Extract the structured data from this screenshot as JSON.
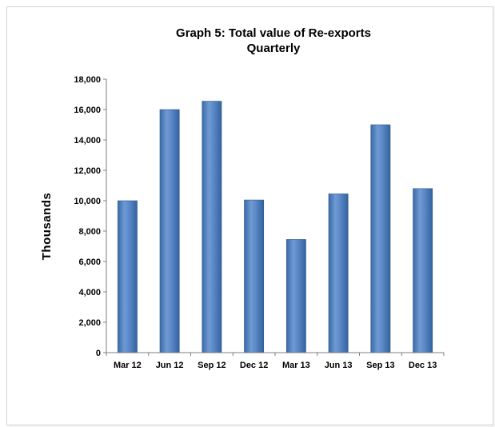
{
  "chart_data": {
    "type": "bar",
    "title": "Graph 5: Total value of Re-exports",
    "subtitle": "Quarterly",
    "xlabel": "",
    "ylabel": "Thousands",
    "categories": [
      "Mar 12",
      "Jun 12",
      "Sep 12",
      "Dec 12",
      "Mar 13",
      "Jun 13",
      "Sep 13",
      "Dec 13"
    ],
    "values": [
      10000,
      16000,
      16550,
      10050,
      7450,
      10450,
      15000,
      10800
    ],
    "ylim": [
      0,
      18000
    ],
    "yticks": [
      "0",
      "2,000",
      "4,000",
      "6,000",
      "8,000",
      "10,000",
      "12,000",
      "14,000",
      "16,000",
      "18,000"
    ],
    "grid": false,
    "legend": "none",
    "bar_color": "#4f81bd"
  }
}
